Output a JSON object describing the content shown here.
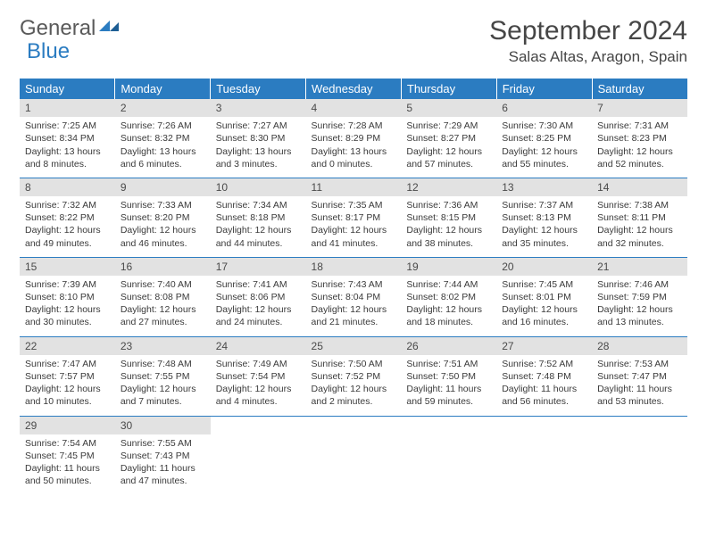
{
  "brand": {
    "part1": "General",
    "part2": "Blue"
  },
  "title": {
    "month": "September 2024",
    "location": "Salas Altas, Aragon, Spain"
  },
  "weekdays": [
    "Sunday",
    "Monday",
    "Tuesday",
    "Wednesday",
    "Thursday",
    "Friday",
    "Saturday"
  ],
  "colors": {
    "header_bg": "#2b7cc1",
    "header_text": "#ffffff",
    "daynum_bg": "#e2e2e2",
    "rule": "#2b7cc1",
    "body_text": "#3a3a3a",
    "title_text": "#464646"
  },
  "weeks": [
    [
      {
        "n": "1",
        "sr": "Sunrise: 7:25 AM",
        "ss": "Sunset: 8:34 PM",
        "dl1": "Daylight: 13 hours",
        "dl2": "and 8 minutes."
      },
      {
        "n": "2",
        "sr": "Sunrise: 7:26 AM",
        "ss": "Sunset: 8:32 PM",
        "dl1": "Daylight: 13 hours",
        "dl2": "and 6 minutes."
      },
      {
        "n": "3",
        "sr": "Sunrise: 7:27 AM",
        "ss": "Sunset: 8:30 PM",
        "dl1": "Daylight: 13 hours",
        "dl2": "and 3 minutes."
      },
      {
        "n": "4",
        "sr": "Sunrise: 7:28 AM",
        "ss": "Sunset: 8:29 PM",
        "dl1": "Daylight: 13 hours",
        "dl2": "and 0 minutes."
      },
      {
        "n": "5",
        "sr": "Sunrise: 7:29 AM",
        "ss": "Sunset: 8:27 PM",
        "dl1": "Daylight: 12 hours",
        "dl2": "and 57 minutes."
      },
      {
        "n": "6",
        "sr": "Sunrise: 7:30 AM",
        "ss": "Sunset: 8:25 PM",
        "dl1": "Daylight: 12 hours",
        "dl2": "and 55 minutes."
      },
      {
        "n": "7",
        "sr": "Sunrise: 7:31 AM",
        "ss": "Sunset: 8:23 PM",
        "dl1": "Daylight: 12 hours",
        "dl2": "and 52 minutes."
      }
    ],
    [
      {
        "n": "8",
        "sr": "Sunrise: 7:32 AM",
        "ss": "Sunset: 8:22 PM",
        "dl1": "Daylight: 12 hours",
        "dl2": "and 49 minutes."
      },
      {
        "n": "9",
        "sr": "Sunrise: 7:33 AM",
        "ss": "Sunset: 8:20 PM",
        "dl1": "Daylight: 12 hours",
        "dl2": "and 46 minutes."
      },
      {
        "n": "10",
        "sr": "Sunrise: 7:34 AM",
        "ss": "Sunset: 8:18 PM",
        "dl1": "Daylight: 12 hours",
        "dl2": "and 44 minutes."
      },
      {
        "n": "11",
        "sr": "Sunrise: 7:35 AM",
        "ss": "Sunset: 8:17 PM",
        "dl1": "Daylight: 12 hours",
        "dl2": "and 41 minutes."
      },
      {
        "n": "12",
        "sr": "Sunrise: 7:36 AM",
        "ss": "Sunset: 8:15 PM",
        "dl1": "Daylight: 12 hours",
        "dl2": "and 38 minutes."
      },
      {
        "n": "13",
        "sr": "Sunrise: 7:37 AM",
        "ss": "Sunset: 8:13 PM",
        "dl1": "Daylight: 12 hours",
        "dl2": "and 35 minutes."
      },
      {
        "n": "14",
        "sr": "Sunrise: 7:38 AM",
        "ss": "Sunset: 8:11 PM",
        "dl1": "Daylight: 12 hours",
        "dl2": "and 32 minutes."
      }
    ],
    [
      {
        "n": "15",
        "sr": "Sunrise: 7:39 AM",
        "ss": "Sunset: 8:10 PM",
        "dl1": "Daylight: 12 hours",
        "dl2": "and 30 minutes."
      },
      {
        "n": "16",
        "sr": "Sunrise: 7:40 AM",
        "ss": "Sunset: 8:08 PM",
        "dl1": "Daylight: 12 hours",
        "dl2": "and 27 minutes."
      },
      {
        "n": "17",
        "sr": "Sunrise: 7:41 AM",
        "ss": "Sunset: 8:06 PM",
        "dl1": "Daylight: 12 hours",
        "dl2": "and 24 minutes."
      },
      {
        "n": "18",
        "sr": "Sunrise: 7:43 AM",
        "ss": "Sunset: 8:04 PM",
        "dl1": "Daylight: 12 hours",
        "dl2": "and 21 minutes."
      },
      {
        "n": "19",
        "sr": "Sunrise: 7:44 AM",
        "ss": "Sunset: 8:02 PM",
        "dl1": "Daylight: 12 hours",
        "dl2": "and 18 minutes."
      },
      {
        "n": "20",
        "sr": "Sunrise: 7:45 AM",
        "ss": "Sunset: 8:01 PM",
        "dl1": "Daylight: 12 hours",
        "dl2": "and 16 minutes."
      },
      {
        "n": "21",
        "sr": "Sunrise: 7:46 AM",
        "ss": "Sunset: 7:59 PM",
        "dl1": "Daylight: 12 hours",
        "dl2": "and 13 minutes."
      }
    ],
    [
      {
        "n": "22",
        "sr": "Sunrise: 7:47 AM",
        "ss": "Sunset: 7:57 PM",
        "dl1": "Daylight: 12 hours",
        "dl2": "and 10 minutes."
      },
      {
        "n": "23",
        "sr": "Sunrise: 7:48 AM",
        "ss": "Sunset: 7:55 PM",
        "dl1": "Daylight: 12 hours",
        "dl2": "and 7 minutes."
      },
      {
        "n": "24",
        "sr": "Sunrise: 7:49 AM",
        "ss": "Sunset: 7:54 PM",
        "dl1": "Daylight: 12 hours",
        "dl2": "and 4 minutes."
      },
      {
        "n": "25",
        "sr": "Sunrise: 7:50 AM",
        "ss": "Sunset: 7:52 PM",
        "dl1": "Daylight: 12 hours",
        "dl2": "and 2 minutes."
      },
      {
        "n": "26",
        "sr": "Sunrise: 7:51 AM",
        "ss": "Sunset: 7:50 PM",
        "dl1": "Daylight: 11 hours",
        "dl2": "and 59 minutes."
      },
      {
        "n": "27",
        "sr": "Sunrise: 7:52 AM",
        "ss": "Sunset: 7:48 PM",
        "dl1": "Daylight: 11 hours",
        "dl2": "and 56 minutes."
      },
      {
        "n": "28",
        "sr": "Sunrise: 7:53 AM",
        "ss": "Sunset: 7:47 PM",
        "dl1": "Daylight: 11 hours",
        "dl2": "and 53 minutes."
      }
    ],
    [
      {
        "n": "29",
        "sr": "Sunrise: 7:54 AM",
        "ss": "Sunset: 7:45 PM",
        "dl1": "Daylight: 11 hours",
        "dl2": "and 50 minutes."
      },
      {
        "n": "30",
        "sr": "Sunrise: 7:55 AM",
        "ss": "Sunset: 7:43 PM",
        "dl1": "Daylight: 11 hours",
        "dl2": "and 47 minutes."
      },
      null,
      null,
      null,
      null,
      null
    ]
  ]
}
